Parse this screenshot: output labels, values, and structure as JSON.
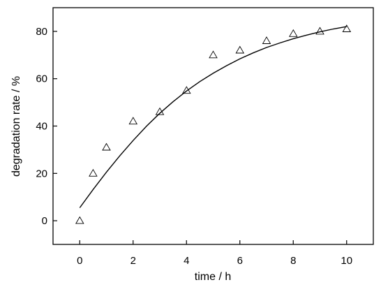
{
  "chart_data": {
    "type": "scatter",
    "title": "",
    "xlabel": "time / h",
    "ylabel": "degradation rate / %",
    "xlim": [
      -1.0,
      11.0
    ],
    "ylim": [
      -10,
      90
    ],
    "xticks": [
      0,
      2,
      4,
      6,
      8,
      10
    ],
    "yticks": [
      0,
      20,
      40,
      60,
      80
    ],
    "grid": false,
    "legend": "none",
    "marker": "open-triangle",
    "series": [
      {
        "x": [
          0,
          0.5,
          1,
          2,
          3,
          4,
          5,
          6,
          7,
          8,
          9,
          10
        ],
        "y": [
          0,
          20,
          31,
          42,
          46,
          55,
          70,
          72,
          76,
          79,
          80,
          81
        ]
      }
    ],
    "fit_curve": {
      "x": [
        0,
        0.5,
        1,
        1.5,
        2,
        2.5,
        3,
        3.5,
        4,
        4.5,
        5,
        5.5,
        6,
        6.5,
        7,
        7.5,
        8,
        8.5,
        9,
        9.5,
        10
      ],
      "y": [
        5.5,
        13.2,
        20.5,
        27.4,
        33.9,
        39.9,
        45.4,
        50.3,
        54.8,
        58.8,
        62.3,
        65.5,
        68.4,
        70.9,
        73.2,
        75.1,
        76.9,
        78.4,
        79.8,
        81.0,
        82.0
      ]
    }
  }
}
